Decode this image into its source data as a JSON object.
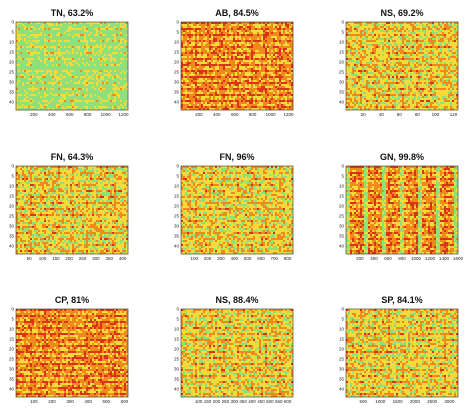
{
  "colors": {
    "low": "#8fe07a",
    "mid": "#f2dc3c",
    "high": "#f08a1c",
    "peak": "#d8341a",
    "frame": "#333333"
  },
  "chart_data": [
    {
      "type": "heatmap",
      "title": "TN, 63.2%",
      "xlabel": "",
      "ylabel": "",
      "xlim": [
        1,
        1250
      ],
      "ylim": [
        0,
        44
      ],
      "xticks": [
        200,
        400,
        600,
        800,
        1000,
        1200
      ],
      "xtick_labels": [
        "200",
        "400",
        "600",
        "800",
        "1000",
        "1200"
      ],
      "yticks": [
        0,
        5,
        10,
        15,
        20,
        25,
        30,
        35,
        40
      ],
      "ytick_labels": [
        "0",
        "5",
        "10",
        "15",
        "20",
        "25",
        "30",
        "35",
        "40"
      ],
      "dominant": "low"
    },
    {
      "type": "heatmap",
      "title": "AB, 84.5%",
      "xlabel": "",
      "ylabel": "",
      "xlim": [
        1,
        1250
      ],
      "ylim": [
        0,
        44
      ],
      "xticks": [
        200,
        400,
        600,
        800,
        1000,
        1200
      ],
      "xtick_labels": [
        "200",
        "400",
        "600",
        "800",
        "1000",
        "1200"
      ],
      "yticks": [
        0,
        5,
        10,
        15,
        20,
        25,
        30,
        35,
        40
      ],
      "ytick_labels": [
        "0",
        "5",
        "10",
        "15",
        "20",
        "25",
        "30",
        "35",
        "40"
      ],
      "dominant": "high"
    },
    {
      "type": "heatmap",
      "title": "NS, 69.2%",
      "xlabel": "",
      "ylabel": "",
      "xlim": [
        1,
        125
      ],
      "ylim": [
        0,
        44
      ],
      "xticks": [
        20,
        40,
        60,
        80,
        100,
        120
      ],
      "xtick_labels": [
        "20",
        "40",
        "60",
        "80",
        "100",
        "120"
      ],
      "yticks": [
        0,
        5,
        10,
        15,
        20,
        25,
        30,
        35,
        40
      ],
      "ytick_labels": [
        "0",
        "5",
        "10",
        "15",
        "20",
        "25",
        "30",
        "35",
        "40"
      ],
      "dominant": "mid"
    },
    {
      "type": "heatmap",
      "title": "FN, 64.3%",
      "xlabel": "",
      "ylabel": "",
      "xlim": [
        1,
        420
      ],
      "ylim": [
        0,
        44
      ],
      "xticks": [
        50,
        100,
        150,
        200,
        250,
        300,
        350,
        400
      ],
      "xtick_labels": [
        "50",
        "100",
        "150",
        "200",
        "250",
        "300",
        "350",
        "400"
      ],
      "yticks": [
        0,
        5,
        10,
        15,
        20,
        25,
        30,
        35,
        40
      ],
      "ytick_labels": [
        "0",
        "5",
        "10",
        "15",
        "20",
        "25",
        "30",
        "35",
        "40"
      ],
      "dominant": "mid"
    },
    {
      "type": "heatmap",
      "title": "FN, 96%",
      "xlabel": "",
      "ylabel": "",
      "xlim": [
        1,
        840
      ],
      "ylim": [
        0,
        44
      ],
      "xticks": [
        100,
        200,
        300,
        400,
        500,
        600,
        700,
        800
      ],
      "xtick_labels": [
        "100",
        "200",
        "300",
        "400",
        "500",
        "600",
        "700",
        "800"
      ],
      "yticks": [
        0,
        5,
        10,
        15,
        20,
        25,
        30,
        35,
        40
      ],
      "ytick_labels": [
        "0",
        "5",
        "10",
        "15",
        "20",
        "25",
        "30",
        "35",
        "40"
      ],
      "dominant": "mid"
    },
    {
      "type": "heatmap",
      "title": "GN, 99.8%",
      "xlabel": "",
      "ylabel": "",
      "xlim": [
        1,
        1600
      ],
      "ylim": [
        0,
        44
      ],
      "xticks": [
        200,
        400,
        600,
        800,
        1000,
        1200,
        1400,
        1600
      ],
      "xtick_labels": [
        "200",
        "400",
        "600",
        "800",
        "1000",
        "1200",
        "1400",
        "1600"
      ],
      "yticks": [
        0,
        5,
        10,
        15,
        20,
        25,
        30,
        35,
        40
      ],
      "ytick_labels": [
        "0",
        "5",
        "10",
        "15",
        "20",
        "25",
        "30",
        "35",
        "40"
      ],
      "dominant": "high"
    },
    {
      "type": "heatmap",
      "title": "CP, 81%",
      "xlabel": "",
      "ylabel": "",
      "xlim": [
        1,
        620
      ],
      "ylim": [
        0,
        44
      ],
      "xticks": [
        100,
        200,
        300,
        400,
        500,
        600
      ],
      "xtick_labels": [
        "100",
        "200",
        "300",
        "400",
        "500",
        "600"
      ],
      "yticks": [
        0,
        5,
        10,
        15,
        20,
        25,
        30,
        35,
        40
      ],
      "ytick_labels": [
        "0",
        "5",
        "10",
        "15",
        "20",
        "25",
        "30",
        "35",
        "40"
      ],
      "dominant": "high"
    },
    {
      "type": "heatmap",
      "title": "NS, 88.4%",
      "xlabel": "",
      "ylabel": "",
      "xlim": [
        1,
        630
      ],
      "ylim": [
        0,
        44
      ],
      "xticks": [
        100,
        150,
        200,
        250,
        300,
        350,
        400,
        450,
        500,
        550,
        600
      ],
      "xtick_labels": [
        "100",
        "150",
        "200",
        "250",
        "300",
        "350",
        "400",
        "450",
        "500",
        "550",
        "600"
      ],
      "yticks": [
        0,
        5,
        10,
        15,
        20,
        25,
        30,
        35,
        40
      ],
      "ytick_labels": [
        "0",
        "5",
        "10",
        "15",
        "20",
        "25",
        "30",
        "35",
        "40"
      ],
      "dominant": "mid"
    },
    {
      "type": "heatmap",
      "title": "SP, 84.1%",
      "xlabel": "",
      "ylabel": "",
      "xlim": [
        1,
        3250
      ],
      "ylim": [
        0,
        44
      ],
      "xticks": [
        500,
        1000,
        1500,
        2000,
        2500,
        3000
      ],
      "xtick_labels": [
        "500",
        "1000",
        "1500",
        "2000",
        "2500",
        "3000"
      ],
      "yticks": [
        0,
        5,
        10,
        15,
        20,
        25,
        30,
        35,
        40
      ],
      "ytick_labels": [
        "0",
        "5",
        "10",
        "15",
        "20",
        "25",
        "30",
        "35",
        "40"
      ],
      "dominant": "mid"
    }
  ]
}
